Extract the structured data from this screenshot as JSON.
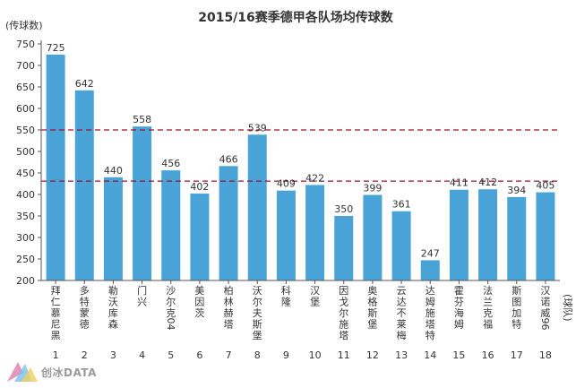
{
  "chart_data": {
    "type": "bar",
    "title": "2015/16赛季德甲各队场均传球数",
    "ylabel": "(传球数)",
    "xlabel": "(球队)",
    "ylim": [
      200,
      750
    ],
    "yticks": [
      200,
      250,
      300,
      350,
      400,
      450,
      500,
      550,
      600,
      650,
      700,
      750
    ],
    "grid": false,
    "reference_lines": [
      550,
      431
    ],
    "colors": {
      "bar": "#4aa3d6",
      "reference": "#a01028",
      "axis": "#555555"
    },
    "categories": [
      "拜仁慕尼黑",
      "多特蒙德",
      "勒沃库森",
      "门兴",
      "沙尔克04",
      "美因茨",
      "柏林赫塔",
      "沃尔夫斯堡",
      "科隆",
      "汉堡",
      "因戈尔施塔",
      "奥格斯堡",
      "云达不莱梅",
      "达姆施塔特",
      "霍芬海姆",
      "法兰克福",
      "斯图加特",
      "汉诺威96"
    ],
    "ranks": [
      "1",
      "2",
      "3",
      "4",
      "5",
      "6",
      "7",
      "8",
      "9",
      "10",
      "11",
      "12",
      "13",
      "14",
      "15",
      "16",
      "17",
      "18"
    ],
    "values": [
      725,
      642,
      440,
      558,
      456,
      402,
      466,
      539,
      409,
      422,
      350,
      399,
      361,
      247,
      411,
      412,
      394,
      405
    ]
  },
  "watermark": {
    "text": "创冰DATA"
  }
}
